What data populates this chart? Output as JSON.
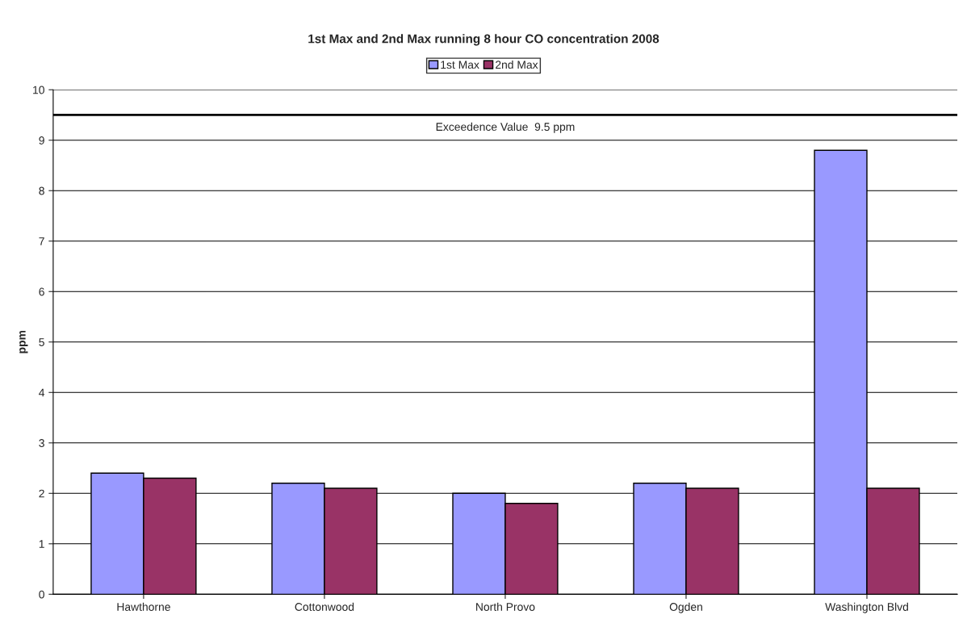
{
  "chart_data": {
    "type": "bar",
    "title": "1st Max and 2nd Max running 8 hour CO concentration 2008",
    "ylabel": "ppm",
    "categories": [
      "Hawthorne",
      "Cottonwood",
      "North Provo",
      "Ogden",
      "Washington Blvd"
    ],
    "series": [
      {
        "name": "1st Max",
        "color": "#9999ff",
        "values": [
          2.4,
          2.2,
          2.0,
          2.2,
          8.8
        ]
      },
      {
        "name": "2nd Max",
        "color": "#993366",
        "values": [
          2.3,
          2.1,
          1.8,
          2.1,
          2.1
        ]
      }
    ],
    "ylim": [
      0,
      10
    ],
    "yticks": [
      0,
      1,
      2,
      3,
      4,
      5,
      6,
      7,
      8,
      9,
      10
    ],
    "grid": "y",
    "legend": "top",
    "ref_lines": [
      {
        "axis": "y",
        "value": 9.5,
        "label": "Exceedence Value  9.5 ppm",
        "color": "#000000",
        "line_style": "solid"
      }
    ]
  }
}
